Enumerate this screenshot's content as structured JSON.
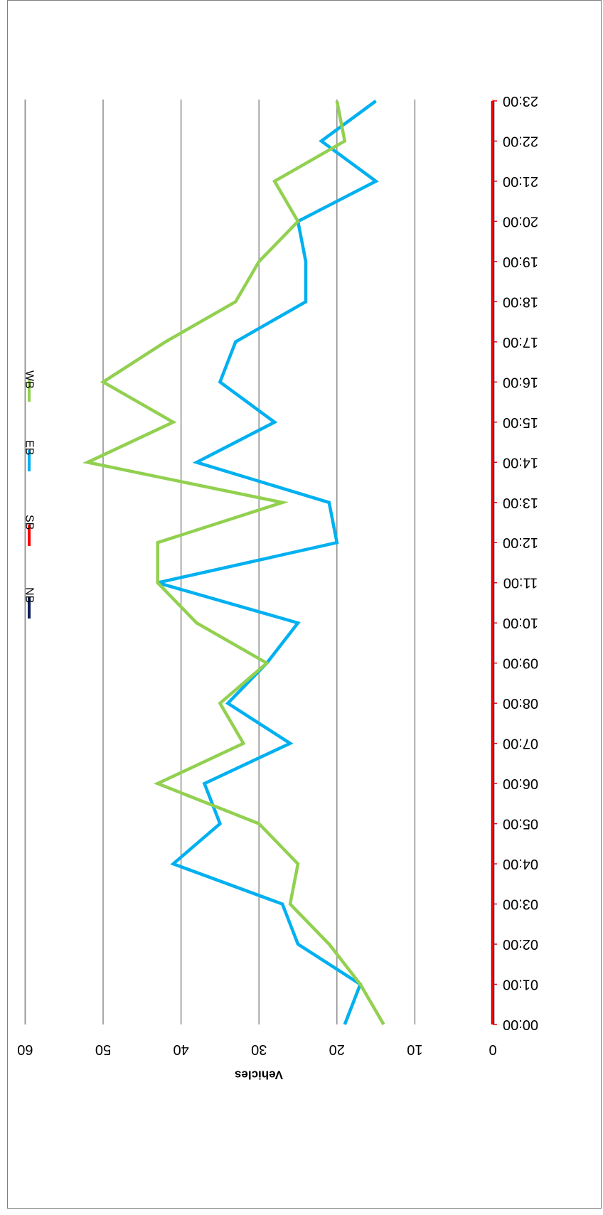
{
  "chart_data": {
    "type": "line",
    "orientation": "rotated-180",
    "title": "",
    "xlabel": "",
    "ylabel": "Vehicles",
    "ylim": [
      0,
      60
    ],
    "yticks": [
      0,
      10,
      20,
      30,
      40,
      50,
      60
    ],
    "grid": true,
    "legend_position": "top",
    "categories": [
      "00:00",
      "01:00",
      "02:00",
      "03:00",
      "04:00",
      "05:00",
      "06:00",
      "07:00",
      "08:00",
      "09:00",
      "10:00",
      "11:00",
      "12:00",
      "13:00",
      "14:00",
      "15:00",
      "16:00",
      "17:00",
      "18:00",
      "19:00",
      "20:00",
      "21:00",
      "22:00",
      "23:00"
    ],
    "series": [
      {
        "name": "NB",
        "color": "#0f1f5a",
        "values": [
          0,
          0,
          0,
          0,
          0,
          0,
          0,
          0,
          0,
          0,
          0,
          0,
          0,
          0,
          0,
          0,
          0,
          0,
          0,
          0,
          0,
          0,
          0,
          0
        ]
      },
      {
        "name": "SB",
        "color": "#ff0000",
        "values": [
          0,
          0,
          0,
          0,
          0,
          0,
          0,
          0,
          0,
          0,
          0,
          0,
          0,
          0,
          0,
          0,
          0,
          0,
          0,
          0,
          0,
          0,
          0,
          0
        ]
      },
      {
        "name": "EB",
        "color": "#00b0f0",
        "values": [
          19,
          17,
          25,
          27,
          41,
          35,
          37,
          26,
          34,
          29,
          25,
          43,
          20,
          21,
          38,
          28,
          35,
          33,
          24,
          24,
          25,
          15,
          22,
          15
        ]
      },
      {
        "name": "WB",
        "color": "#92d050",
        "values": [
          14,
          17,
          21,
          26,
          25,
          30,
          43,
          32,
          35,
          29,
          38,
          43,
          43,
          27,
          52,
          41,
          50,
          42,
          33,
          30,
          25,
          28,
          19,
          20
        ]
      }
    ]
  }
}
